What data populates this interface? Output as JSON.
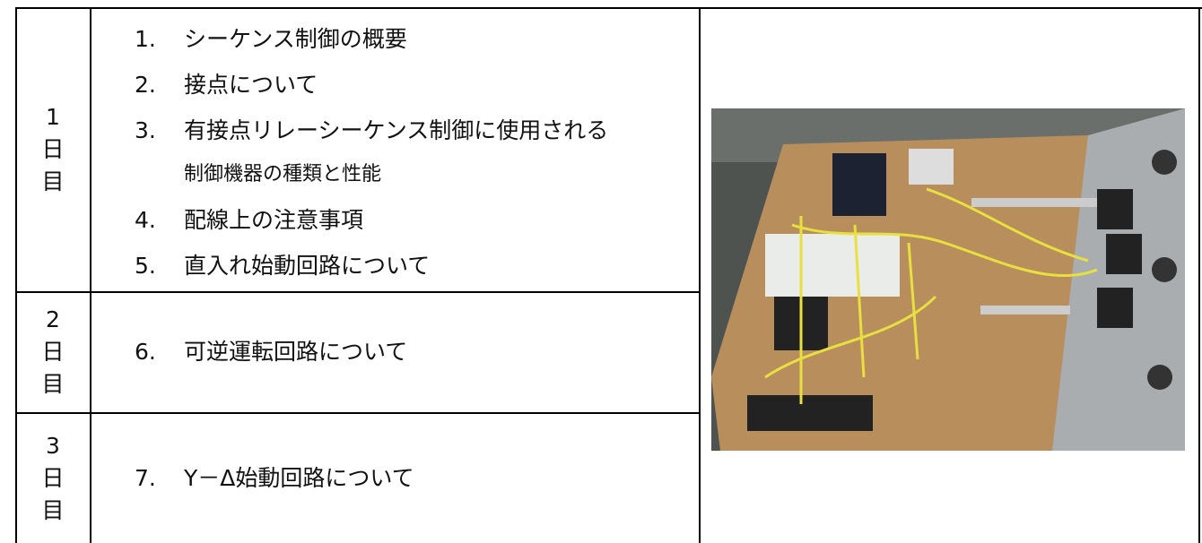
{
  "table": {
    "rows": [
      {
        "day": [
          "1",
          "日",
          "目"
        ],
        "items": [
          {
            "number": "1.",
            "lines": [
              "シーケンス制御の概要"
            ]
          },
          {
            "number": "2.",
            "lines": [
              "接点について"
            ]
          },
          {
            "number": "3.",
            "lines": [
              "有接点リレーシーケンス制御に使用される",
              "制御機器の種類と性能"
            ]
          },
          {
            "number": "4.",
            "lines": [
              "配線上の注意事項"
            ]
          },
          {
            "number": "5.",
            "lines": [
              "直入れ始動回路について"
            ]
          }
        ]
      },
      {
        "day": [
          "2",
          "日",
          "目"
        ],
        "items": [
          {
            "number": "6.",
            "lines": [
              "可逆運転回路について"
            ]
          }
        ]
      },
      {
        "day": [
          "3",
          "日",
          "目"
        ],
        "items": [
          {
            "number": "7.",
            "lines": [
              "Y－Δ始動回路について"
            ]
          }
        ]
      }
    ]
  }
}
